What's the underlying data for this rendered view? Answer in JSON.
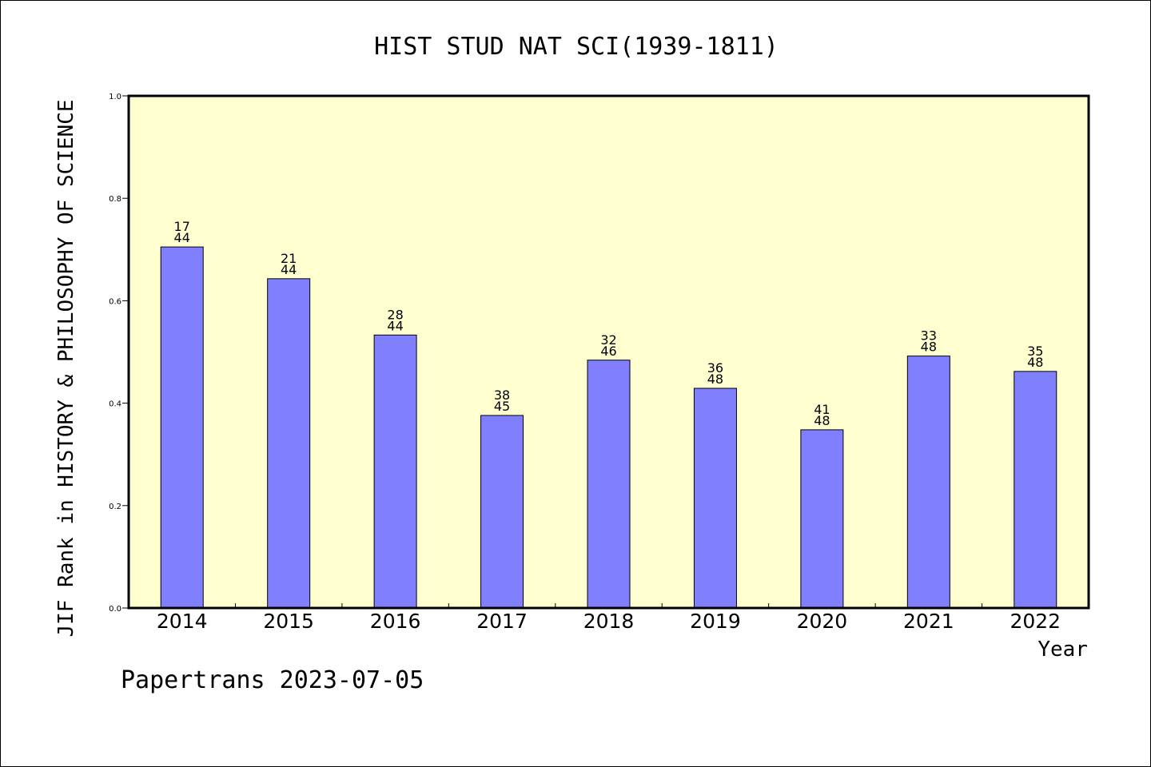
{
  "chart_data": {
    "type": "bar",
    "title": "HIST STUD NAT SCI(1939-1811)",
    "xlabel": "Year",
    "ylabel": "JIF Rank in HISTORY & PHILOSOPHY OF SCIENCE",
    "ylim": [
      0,
      1.0
    ],
    "yticks": [
      "0.0",
      "0.2",
      "0.4",
      "0.6",
      "0.8",
      "1.0"
    ],
    "categories": [
      "2014",
      "2015",
      "2016",
      "2017",
      "2018",
      "2019",
      "2020",
      "2021",
      "2022"
    ],
    "values": [
      0.705,
      0.643,
      0.533,
      0.376,
      0.484,
      0.429,
      0.348,
      0.492,
      0.462
    ],
    "ranks": [
      "17",
      "21",
      "28",
      "38",
      "32",
      "36",
      "41",
      "33",
      "35"
    ],
    "totals": [
      "44",
      "44",
      "44",
      "45",
      "46",
      "48",
      "48",
      "48",
      "48"
    ],
    "grid": false,
    "colors": {
      "bar": "#8080ff",
      "plot_bg": "#ffffd0"
    }
  },
  "footer": "Papertrans 2023-07-05"
}
